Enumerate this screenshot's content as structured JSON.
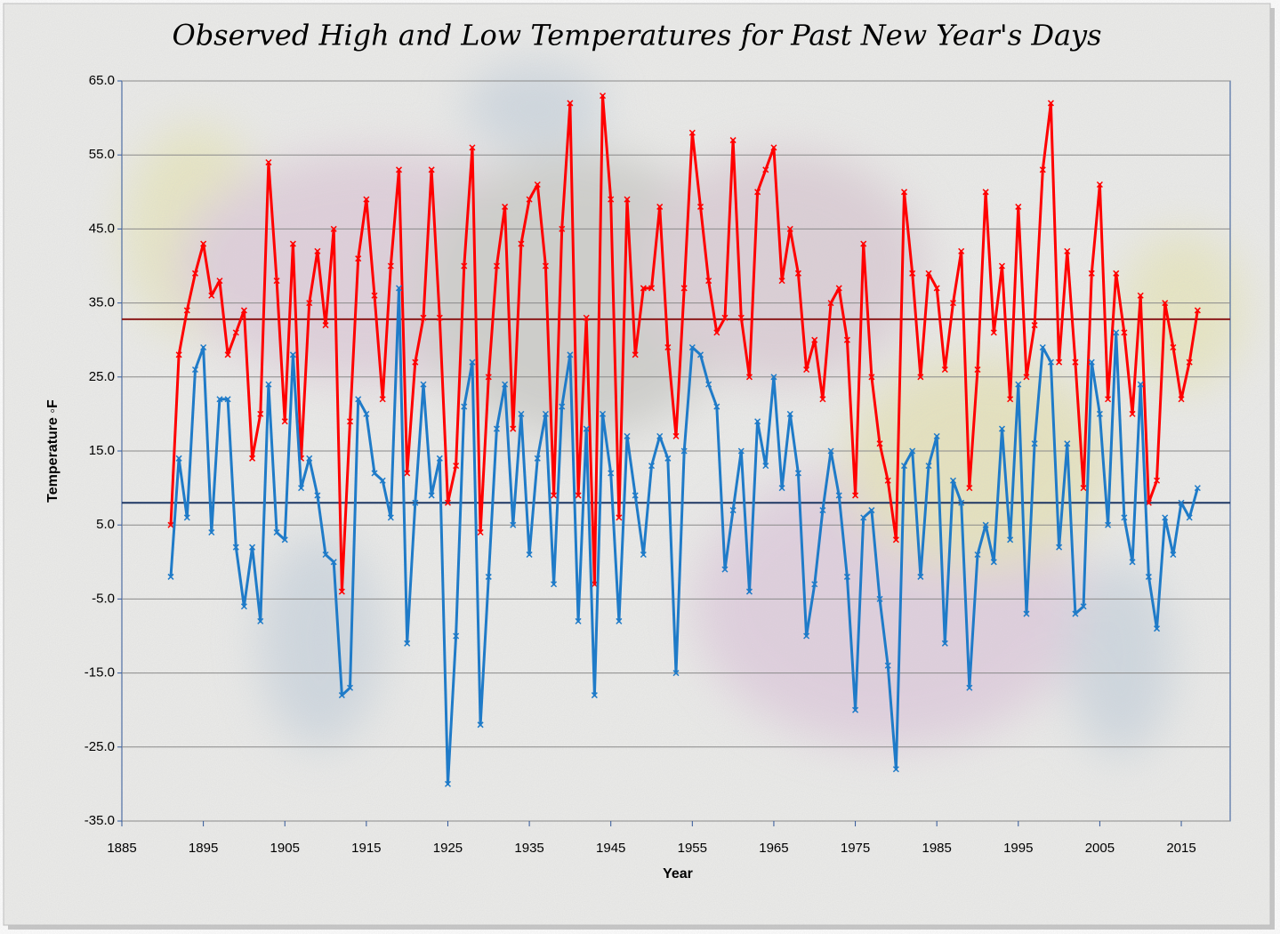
{
  "chart_data": {
    "type": "line",
    "title": "Observed High and Low Temperatures for Past New Year's Days",
    "xlabel": "Year",
    "ylabel": "Temperature ◦F",
    "x": [
      1891,
      1892,
      1893,
      1894,
      1895,
      1896,
      1897,
      1898,
      1899,
      1900,
      1901,
      1902,
      1903,
      1904,
      1905,
      1906,
      1907,
      1908,
      1909,
      1910,
      1911,
      1912,
      1913,
      1914,
      1915,
      1916,
      1917,
      1918,
      1919,
      1920,
      1921,
      1922,
      1923,
      1924,
      1925,
      1926,
      1927,
      1928,
      1929,
      1930,
      1931,
      1932,
      1933,
      1934,
      1935,
      1936,
      1937,
      1938,
      1939,
      1940,
      1941,
      1942,
      1943,
      1944,
      1945,
      1946,
      1947,
      1948,
      1949,
      1950,
      1951,
      1952,
      1953,
      1954,
      1955,
      1956,
      1957,
      1958,
      1959,
      1960,
      1961,
      1962,
      1963,
      1964,
      1965,
      1966,
      1967,
      1968,
      1969,
      1970,
      1971,
      1972,
      1973,
      1974,
      1975,
      1976,
      1977,
      1978,
      1979,
      1980,
      1981,
      1982,
      1983,
      1984,
      1985,
      1986,
      1987,
      1988,
      1989,
      1990,
      1991,
      1992,
      1993,
      1994,
      1995,
      1996,
      1997,
      1998,
      1999,
      2000,
      2001,
      2002,
      2003,
      2004,
      2005,
      2006,
      2007,
      2008,
      2009,
      2010,
      2011,
      2012,
      2013,
      2014,
      2015,
      2016,
      2017
    ],
    "series": [
      {
        "color": "#ff0000",
        "values": [
          5,
          28,
          34,
          39,
          43,
          36,
          38,
          28,
          31,
          34,
          14,
          20,
          54,
          38,
          19,
          43,
          14,
          35,
          42,
          32,
          45,
          -4,
          19,
          41,
          49,
          36,
          22,
          40,
          53,
          12,
          27,
          33,
          53,
          33,
          8,
          13,
          40,
          56,
          4,
          25,
          40,
          48,
          18,
          43,
          49,
          51,
          40,
          9,
          45,
          62,
          9,
          33,
          -3,
          63,
          49,
          6,
          49,
          28,
          37,
          37,
          48,
          29,
          17,
          37,
          58,
          48,
          38,
          31,
          33,
          57,
          33,
          25,
          50,
          53,
          56,
          38,
          45,
          39,
          26,
          30,
          22,
          35,
          37,
          30,
          9,
          43,
          25,
          16,
          11,
          3,
          50,
          39,
          25,
          39,
          37,
          26,
          35,
          42,
          10,
          26,
          50,
          31,
          40,
          22,
          48,
          25,
          32,
          53,
          62,
          27,
          42,
          27,
          10,
          39,
          51,
          22,
          39,
          31,
          20,
          36,
          8,
          11,
          35,
          29,
          22,
          27,
          34
        ]
      },
      {
        "color": "#1f7bc8",
        "values": [
          -2,
          14,
          6,
          26,
          29,
          4,
          22,
          22,
          2,
          -6,
          2,
          -8,
          24,
          4,
          3,
          28,
          10,
          14,
          9,
          1,
          0,
          -18,
          -17,
          22,
          20,
          12,
          11,
          6,
          37,
          -11,
          8,
          24,
          9,
          14,
          -30,
          -10,
          21,
          27,
          -22,
          -2,
          18,
          24,
          5,
          20,
          1,
          14,
          20,
          -3,
          21,
          28,
          -8,
          18,
          -18,
          20,
          12,
          -8,
          17,
          9,
          1,
          13,
          17,
          14,
          -15,
          15,
          29,
          28,
          24,
          21,
          -1,
          7,
          15,
          -4,
          19,
          13,
          25,
          10,
          20,
          12,
          -10,
          -3,
          7,
          15,
          9,
          -2,
          -20,
          6,
          7,
          -5,
          -14,
          -28,
          13,
          15,
          -2,
          13,
          17,
          -11,
          11,
          8,
          -17,
          1,
          5,
          0,
          18,
          3,
          24,
          -7,
          16,
          29,
          27,
          2,
          16,
          -7,
          -6,
          27,
          20,
          5,
          31,
          6,
          0,
          24,
          -2,
          -9,
          6,
          1,
          8,
          6,
          10
        ]
      }
    ],
    "mean_lines": [
      {
        "value": 32.8,
        "color": "#8b1a1a"
      },
      {
        "value": 8,
        "color": "#1f3864"
      }
    ],
    "xlim": [
      1885,
      2021
    ],
    "xticks": [
      1885,
      1895,
      1905,
      1915,
      1925,
      1935,
      1945,
      1955,
      1965,
      1975,
      1985,
      1995,
      2005,
      2015
    ],
    "ylim": [
      -35,
      65
    ],
    "yticks": [
      {
        "value": 65,
        "label": "65.0"
      },
      {
        "value": 55,
        "label": "55.0"
      },
      {
        "value": 45,
        "label": "45.0"
      },
      {
        "value": 35,
        "label": "35.0"
      },
      {
        "value": 25,
        "label": "25.0"
      },
      {
        "value": 15,
        "label": "15.0"
      },
      {
        "value": 5,
        "label": "5.0"
      },
      {
        "value": -5,
        "label": "-5.0"
      },
      {
        "value": -15,
        "label": "-15.0"
      },
      {
        "value": -25,
        "label": "-25.0"
      },
      {
        "value": -35,
        "label": "-35.0"
      }
    ],
    "grid": true
  }
}
